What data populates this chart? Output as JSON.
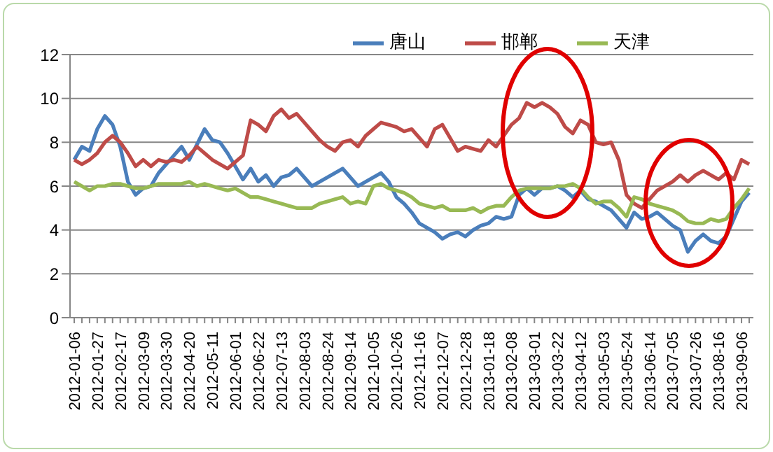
{
  "chart_data": {
    "type": "line",
    "categories": [
      "2012-01-06",
      null,
      null,
      "2012-01-27",
      null,
      null,
      "2012-02-17",
      null,
      null,
      "2012-03-09",
      null,
      null,
      "2012-03-30",
      null,
      null,
      "2012-04-20",
      null,
      null,
      "2012-05-11",
      null,
      null,
      "2012-06-01",
      null,
      null,
      "2012-06-22",
      null,
      null,
      "2012-07-13",
      null,
      null,
      "2012-08-03",
      null,
      null,
      "2012-08-24",
      null,
      null,
      "2012-09-14",
      null,
      null,
      "2012-10-05",
      null,
      null,
      "2012-10-26",
      null,
      null,
      "2012-11-16",
      null,
      null,
      "2012-12-07",
      null,
      null,
      "2012-12-28",
      null,
      null,
      "2013-01-18",
      null,
      null,
      "2013-02-08",
      null,
      null,
      "2013-03-01",
      null,
      null,
      "2013-03-22",
      null,
      null,
      "2013-04-12",
      null,
      null,
      "2013-05-03",
      null,
      null,
      "2013-05-24",
      null,
      null,
      "2013-06-14",
      null,
      null,
      "2013-07-05",
      null,
      null,
      "2013-07-26",
      null,
      null,
      "2013-08-16",
      null,
      null,
      "2013-09-06",
      null
    ],
    "series": [
      {
        "name": "唐山",
        "color": "#4a7ebb",
        "values": [
          7.2,
          7.8,
          7.6,
          8.6,
          9.2,
          8.8,
          7.8,
          6.2,
          5.6,
          5.9,
          6.0,
          6.6,
          7.0,
          7.4,
          7.8,
          7.2,
          7.9,
          8.6,
          8.1,
          8.0,
          7.5,
          6.9,
          6.3,
          6.8,
          6.2,
          6.5,
          6.0,
          6.4,
          6.5,
          6.8,
          6.4,
          6.0,
          6.2,
          6.4,
          6.6,
          6.8,
          6.4,
          6.0,
          6.2,
          6.4,
          6.6,
          6.2,
          5.5,
          5.2,
          4.8,
          4.3,
          4.1,
          3.9,
          3.6,
          3.8,
          3.9,
          3.7,
          4.0,
          4.2,
          4.3,
          4.6,
          4.5,
          4.6,
          5.6,
          5.9,
          5.6,
          5.9,
          5.9,
          6.0,
          5.8,
          5.5,
          5.8,
          5.4,
          5.3,
          5.1,
          4.9,
          4.5,
          4.1,
          4.8,
          4.5,
          4.6,
          4.8,
          4.5,
          4.2,
          4.0,
          3.0,
          3.5,
          3.8,
          3.5,
          3.4,
          3.7,
          4.5,
          5.3,
          5.7
        ]
      },
      {
        "name": "邯郸",
        "color": "#be4b48",
        "values": [
          7.2,
          7.0,
          7.2,
          7.5,
          8.0,
          8.3,
          8.0,
          7.5,
          6.9,
          7.2,
          6.9,
          7.2,
          7.1,
          7.2,
          7.1,
          7.4,
          7.8,
          7.5,
          7.2,
          7.0,
          6.8,
          7.1,
          7.4,
          9.0,
          8.8,
          8.5,
          9.2,
          9.5,
          9.1,
          9.3,
          8.9,
          8.5,
          8.1,
          7.8,
          7.6,
          8.0,
          8.1,
          7.8,
          8.3,
          8.6,
          8.9,
          8.8,
          8.7,
          8.5,
          8.6,
          8.2,
          7.8,
          8.6,
          8.8,
          8.2,
          7.6,
          7.8,
          7.7,
          7.6,
          8.1,
          7.8,
          8.3,
          8.8,
          9.1,
          9.8,
          9.6,
          9.8,
          9.6,
          9.3,
          8.7,
          8.4,
          9.0,
          8.8,
          8.0,
          7.9,
          8.0,
          7.2,
          5.6,
          5.2,
          5.0,
          5.4,
          5.8,
          6.0,
          6.2,
          6.5,
          6.2,
          6.5,
          6.7,
          6.5,
          6.3,
          6.6,
          6.3,
          7.2,
          7.0
        ]
      },
      {
        "name": "天津",
        "color": "#98b954",
        "values": [
          6.2,
          6.0,
          5.8,
          6.0,
          6.0,
          6.1,
          6.1,
          6.0,
          5.9,
          5.9,
          6.0,
          6.1,
          6.1,
          6.1,
          6.1,
          6.2,
          6.0,
          6.1,
          6.0,
          5.9,
          5.8,
          5.9,
          5.7,
          5.5,
          5.5,
          5.4,
          5.3,
          5.2,
          5.1,
          5.0,
          5.0,
          5.0,
          5.2,
          5.3,
          5.4,
          5.5,
          5.2,
          5.3,
          5.2,
          6.0,
          6.1,
          5.9,
          5.8,
          5.7,
          5.5,
          5.2,
          5.1,
          5.0,
          5.1,
          4.9,
          4.9,
          4.9,
          5.0,
          4.8,
          5.0,
          5.1,
          5.1,
          5.5,
          5.8,
          5.9,
          5.9,
          5.9,
          5.9,
          6.0,
          6.0,
          6.1,
          5.9,
          5.5,
          5.2,
          5.3,
          5.3,
          5.0,
          4.6,
          5.5,
          5.4,
          5.2,
          5.1,
          5.0,
          4.9,
          4.7,
          4.4,
          4.3,
          4.3,
          4.5,
          4.4,
          4.5,
          5.0,
          5.4,
          5.9
        ]
      }
    ],
    "ylim": [
      0,
      12
    ],
    "yticks": [
      0,
      2,
      4,
      6,
      8,
      10,
      12
    ],
    "grid": "y",
    "legend": "top right",
    "marker": "none",
    "line_style": "solid"
  }
}
